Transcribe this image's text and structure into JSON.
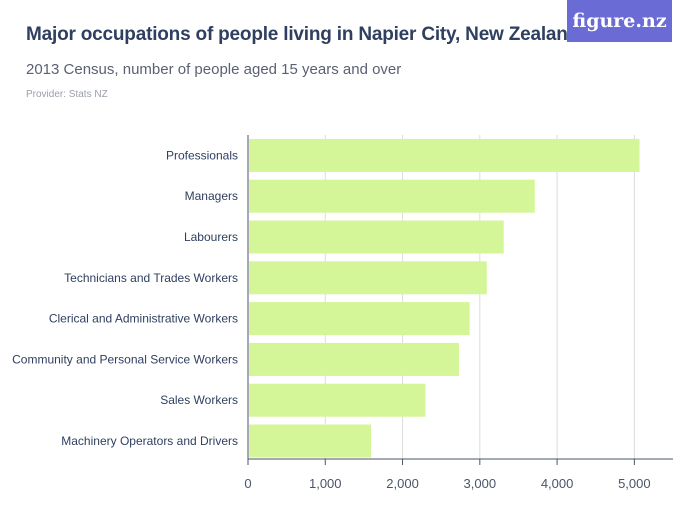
{
  "header": {
    "title": "Major occupations of people living in Napier City, New Zealand",
    "subtitle": "2013 Census, number of people aged 15 years and over",
    "provider": "Provider: Stats NZ"
  },
  "brand": {
    "label": "figure.nz",
    "color": "#6b6bd6"
  },
  "colors": {
    "bar": "#d4f598",
    "grid": "#dcdcdc",
    "axis": "#4a5568",
    "label": "#2f3f5f"
  },
  "chart_data": {
    "type": "bar",
    "orientation": "horizontal",
    "categories": [
      "Professionals",
      "Managers",
      "Labourers",
      "Technicians and Trades Workers",
      "Clerical and Administrative Workers",
      "Community and Personal Service Workers",
      "Sales Workers",
      "Machinery Operators and Drivers"
    ],
    "values": [
      5067,
      3711,
      3309,
      3090,
      2868,
      2730,
      2298,
      1593
    ],
    "xlim": [
      0,
      5500
    ],
    "xticks": [
      0,
      1000,
      2000,
      3000,
      4000,
      5000
    ],
    "xtick_labels": [
      "0",
      "1,000",
      "2,000",
      "3,000",
      "4,000",
      "5,000"
    ],
    "grid": true,
    "legend": "none"
  }
}
